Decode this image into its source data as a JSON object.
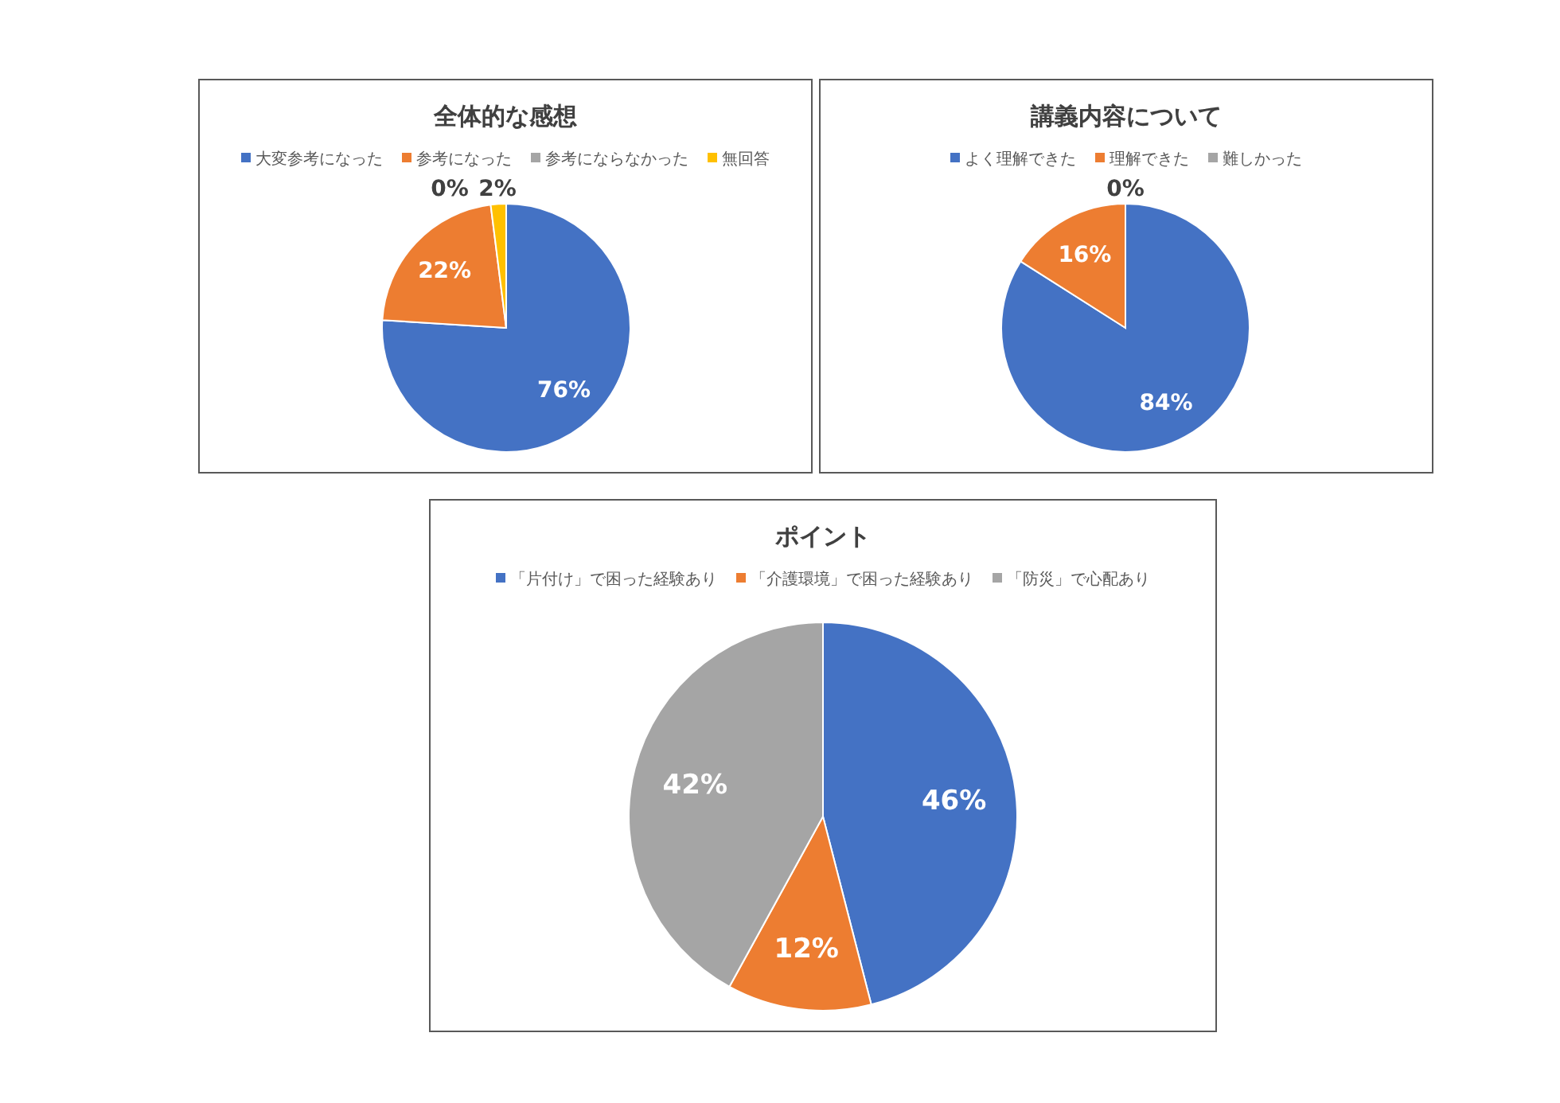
{
  "chart_data": [
    {
      "type": "pie",
      "title": "全体的な感想",
      "categories": [
        "大変参考になった",
        "参考になった",
        "参考にならなかった",
        "無回答"
      ],
      "values": [
        76,
        22,
        0,
        2
      ],
      "colors": [
        "#4472c4",
        "#ed7d31",
        "#a5a5a5",
        "#ffc000"
      ],
      "value_labels": [
        "76%",
        "22%",
        "0%",
        "2%"
      ],
      "legend": "top"
    },
    {
      "type": "pie",
      "title": "講義内容について",
      "categories": [
        "よく理解できた",
        "理解できた",
        "難しかった"
      ],
      "values": [
        84,
        16,
        0
      ],
      "colors": [
        "#4472c4",
        "#ed7d31",
        "#a5a5a5"
      ],
      "value_labels": [
        "84%",
        "16%",
        "0%"
      ],
      "legend": "top"
    },
    {
      "type": "pie",
      "title": "ポイント",
      "categories": [
        "「片付け」で困った経験あり",
        "「介護環境」で困った経験あり",
        "「防災」で心配あり"
      ],
      "values": [
        46,
        12,
        42
      ],
      "colors": [
        "#4472c4",
        "#ed7d31",
        "#a5a5a5"
      ],
      "value_labels": [
        "46%",
        "12%",
        "42%"
      ],
      "legend": "top"
    }
  ]
}
